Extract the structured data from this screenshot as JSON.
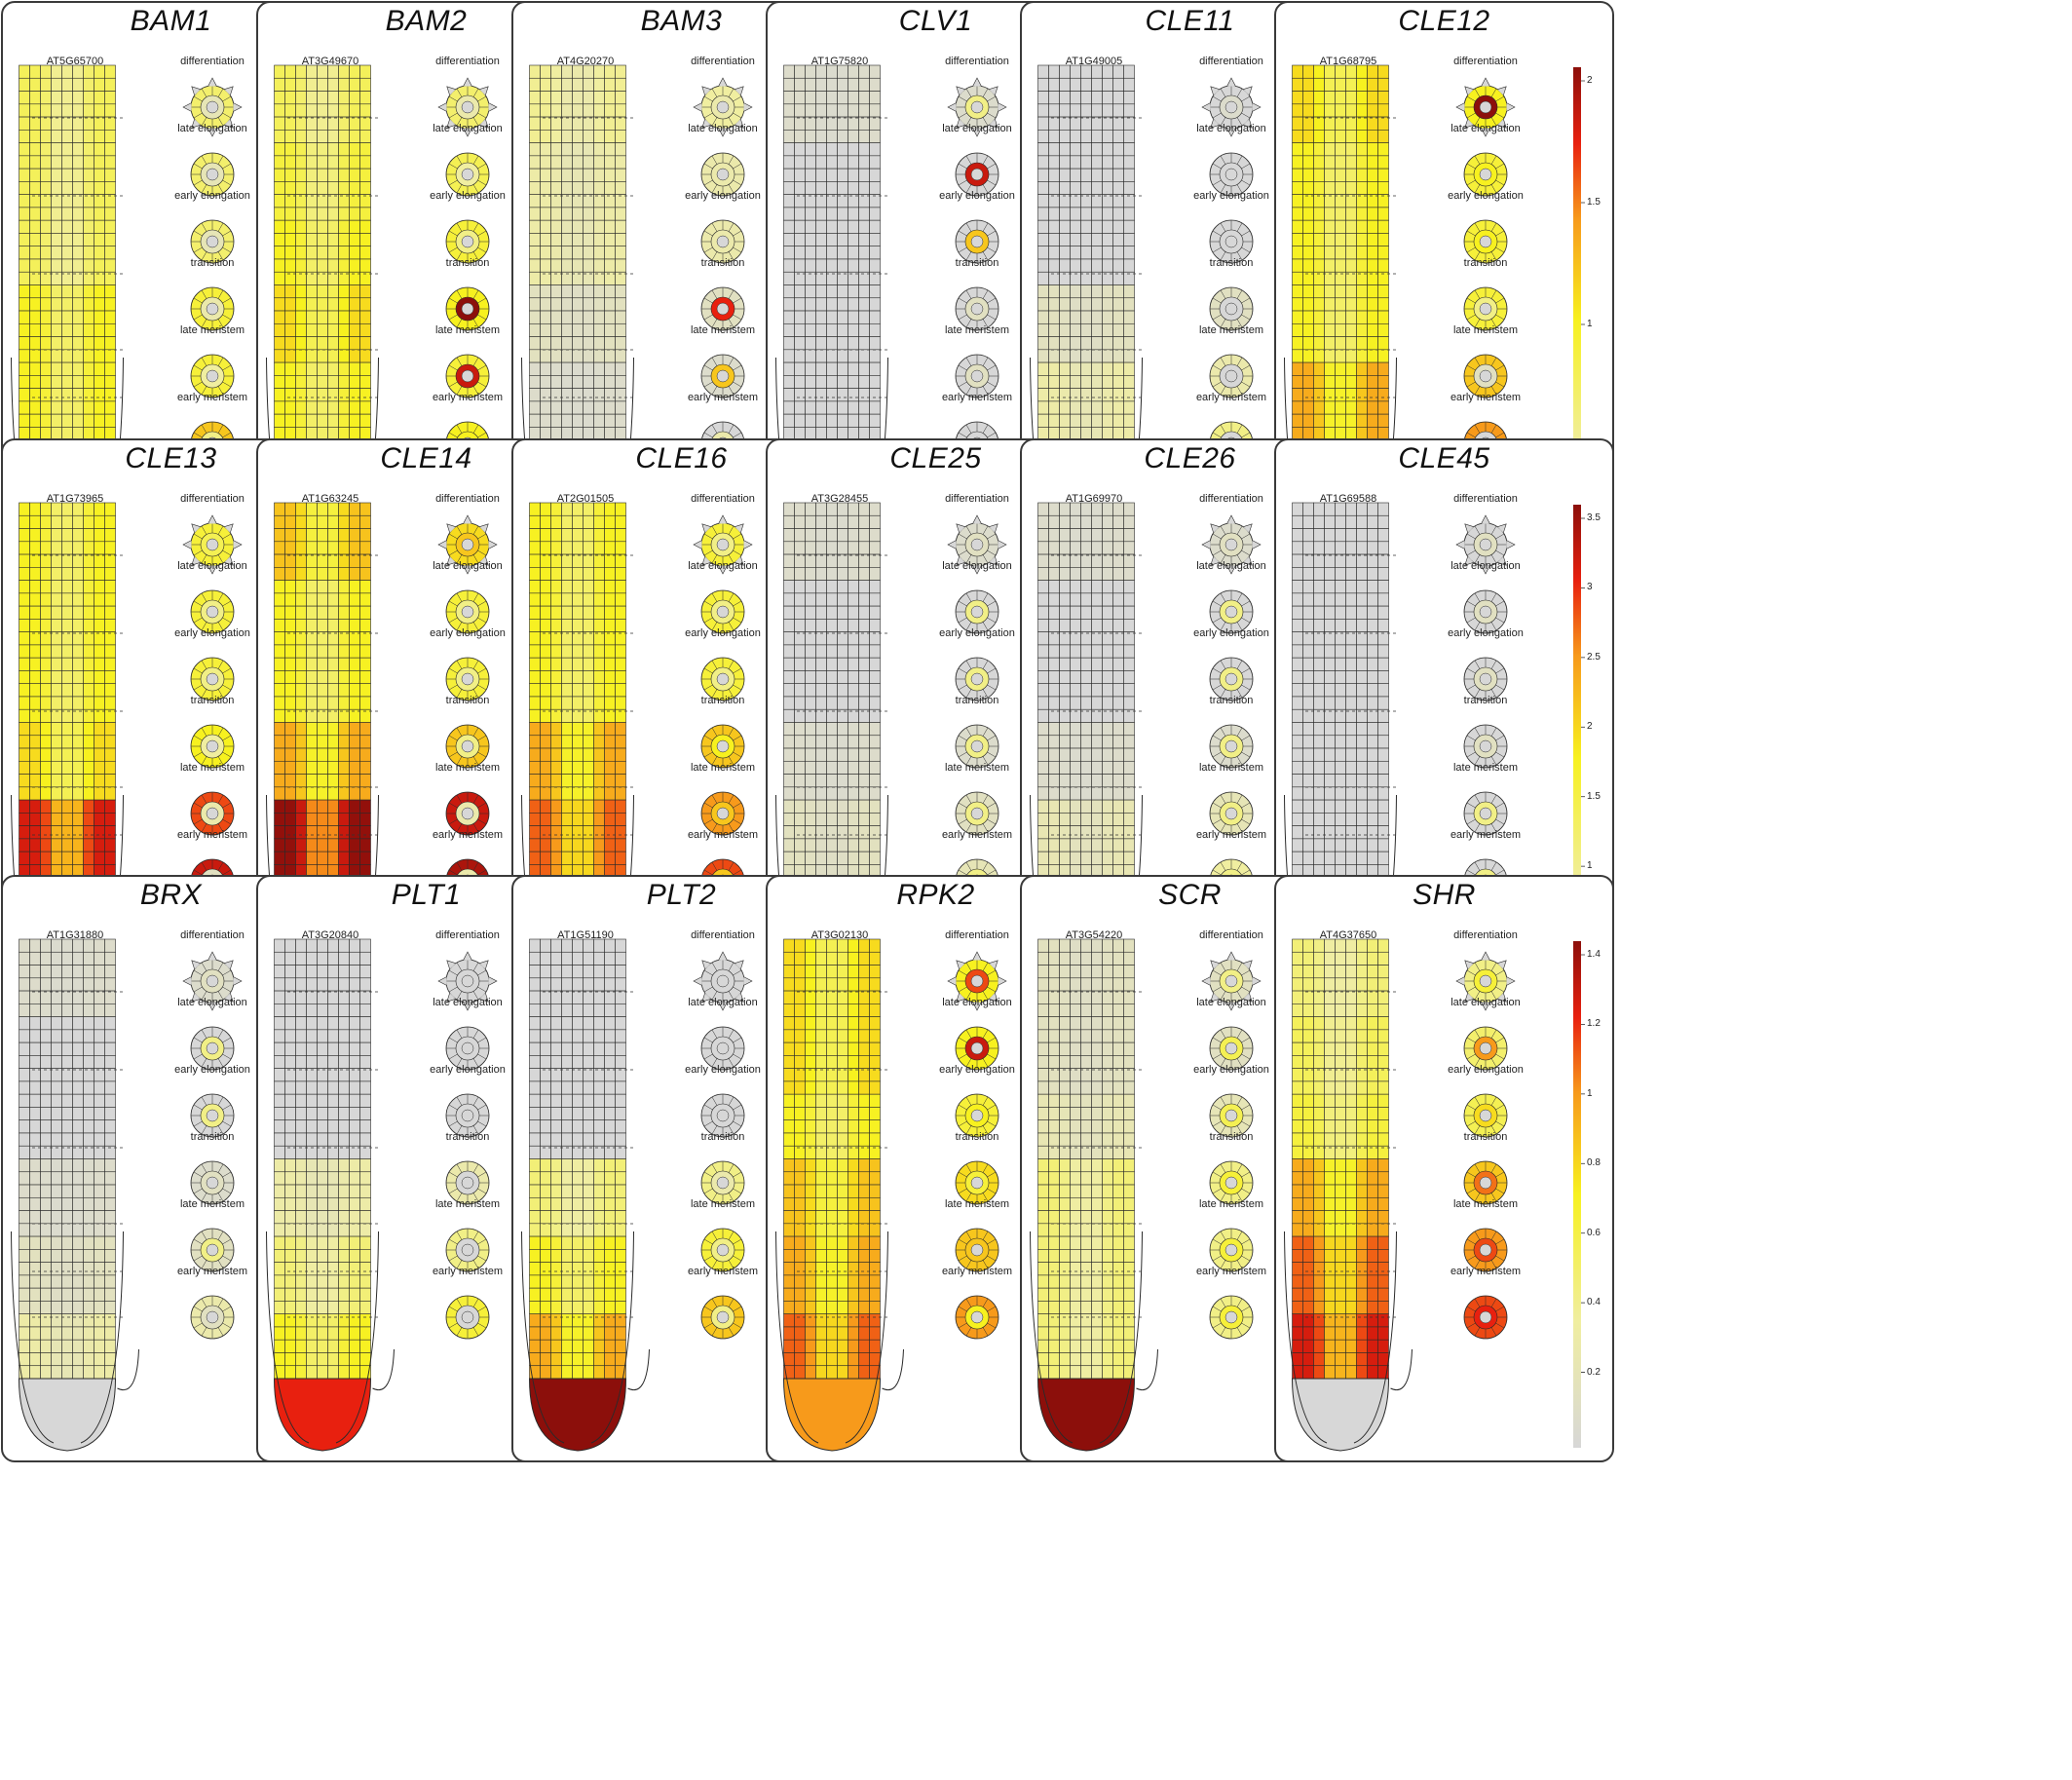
{
  "stages": [
    "differentiation",
    "late elongation",
    "early elongation",
    "transition",
    "late meristem",
    "early meristem"
  ],
  "colors": {
    "grey": "#d7d7d7",
    "lightYellow": "#f0eea0",
    "yellow": "#f7f11f",
    "orange": "#f79a1b",
    "red": "#e8200f",
    "darkRed": "#8c0f0b",
    "outline": "#2a2a2a"
  },
  "panels": [
    {
      "gene": "BAM1",
      "agi": "AT5G65700",
      "ticks": [
        "3",
        "2.5",
        "2",
        "1.5",
        "1",
        "0.5"
      ],
      "profile": [
        0.35,
        0.35,
        0.35,
        0.45,
        0.45,
        0.6
      ],
      "tip": "darkRed",
      "cs": [
        0.15,
        0.15,
        0.15,
        0.2,
        0.25,
        0.3
      ]
    },
    {
      "gene": "BAM2",
      "agi": "AT3G49670",
      "ticks": [
        "0.45",
        "0.4",
        "0.35",
        "0.3",
        "0.25",
        "0.2",
        "0.15",
        "0.1",
        "0.05"
      ],
      "profile": [
        0.35,
        0.4,
        0.45,
        0.5,
        0.45,
        0.5
      ],
      "tip": "yellow",
      "cs": [
        0.2,
        0.25,
        0.3,
        1.0,
        0.9,
        0.5
      ]
    },
    {
      "gene": "BAM3",
      "agi": "AT4G20270",
      "ticks": [
        "7",
        "6",
        "5",
        "4",
        "3",
        "2",
        "1"
      ],
      "profile": [
        0.25,
        0.2,
        0.2,
        0.1,
        0.05,
        0.0
      ],
      "tip": "grey",
      "cs": [
        0.2,
        0.2,
        0.2,
        0.85,
        0.6,
        0.2
      ]
    },
    {
      "gene": "CLV1",
      "agi": "AT1G75820",
      "ticks": [
        "3",
        "2.5",
        "2",
        "1.5",
        "1",
        "0.5"
      ],
      "profile": [
        0.05,
        0.0,
        0.0,
        0.0,
        0.0,
        0.0
      ],
      "tip": "grey",
      "cs": [
        0.3,
        0.9,
        0.6,
        0.1,
        0.1,
        0.0
      ]
    },
    {
      "gene": "CLE11",
      "agi": "AT1G49005",
      "ticks": [
        "1.6",
        "1.4",
        "1.2",
        "1",
        "0.8",
        "0.6",
        "0.4",
        "0.2"
      ],
      "profile": [
        0.0,
        0.0,
        0.0,
        0.1,
        0.2,
        0.3
      ],
      "tip": "darkRed",
      "cs": [
        0.05,
        0.0,
        0.0,
        0.0,
        0.0,
        0.0
      ]
    },
    {
      "gene": "CLE12",
      "agi": "AT1G68795",
      "ticks": [
        "2",
        "1.5",
        "1",
        "0.5"
      ],
      "profile": [
        0.5,
        0.45,
        0.45,
        0.45,
        0.6,
        0.7
      ],
      "tip": "grey",
      "cs": [
        1.0,
        0.5,
        0.5,
        0.3,
        0.1,
        0.0
      ]
    },
    {
      "gene": "CLE13",
      "agi": "AT1G73965",
      "ticks": [
        "2",
        "1.5",
        "1",
        "0.5"
      ],
      "profile": [
        0.45,
        0.45,
        0.45,
        0.5,
        0.8,
        0.9
      ],
      "tip": "darkRed",
      "cs": [
        0.4,
        0.3,
        0.3,
        0.25,
        0.2,
        0.1
      ]
    },
    {
      "gene": "CLE14",
      "agi": "AT1G63245",
      "ticks": [
        "1",
        "0.8",
        "0.6",
        "0.4",
        "0.2"
      ],
      "profile": [
        0.55,
        0.45,
        0.45,
        0.6,
        0.9,
        0.95
      ],
      "tip": "grey",
      "cs": [
        0.6,
        0.3,
        0.3,
        0.3,
        0.2,
        0.2
      ]
    },
    {
      "gene": "CLE16",
      "agi": "AT2G01505",
      "ticks": [
        "0.8",
        "0.6",
        "0.4",
        "0.2"
      ],
      "profile": [
        0.45,
        0.45,
        0.45,
        0.6,
        0.7,
        0.8
      ],
      "tip": "darkRed",
      "cs": [
        0.3,
        0.3,
        0.3,
        0.5,
        0.6,
        0.6
      ]
    },
    {
      "gene": "CLE25",
      "agi": "AT3G28455",
      "ticks": [
        "3.5",
        "3",
        "2.5",
        "2",
        "1.5",
        "1",
        "0.5"
      ],
      "profile": [
        0.05,
        0.0,
        0.0,
        0.05,
        0.1,
        0.15
      ],
      "tip": "grey",
      "cs": [
        0.1,
        0.3,
        0.3,
        0.3,
        0.3,
        0.3
      ]
    },
    {
      "gene": "CLE26",
      "agi": "AT1G69970",
      "ticks": [
        "1.2",
        "1",
        "0.8",
        "0.6",
        "0.4",
        "0.2"
      ],
      "profile": [
        0.05,
        0.0,
        0.0,
        0.05,
        0.15,
        0.25
      ],
      "tip": "grey",
      "cs": [
        0.1,
        0.3,
        0.3,
        0.3,
        0.3,
        0.3
      ]
    },
    {
      "gene": "CLE45",
      "agi": "AT1G69588",
      "ticks": [
        "3.5",
        "3",
        "2.5",
        "2",
        "1.5",
        "1",
        "0.5"
      ],
      "profile": [
        0.0,
        0.0,
        0.0,
        0.0,
        0.0,
        0.0
      ],
      "tip": "grey",
      "cs": [
        0.1,
        0.1,
        0.1,
        0.1,
        0.3,
        0.3
      ]
    },
    {
      "gene": "BRX",
      "agi": "AT1G31880",
      "ticks": [
        "2",
        "1.5",
        "1",
        "0.5"
      ],
      "profile": [
        0.05,
        0.0,
        0.0,
        0.05,
        0.1,
        0.2
      ],
      "tip": "grey",
      "cs": [
        0.1,
        0.3,
        0.3,
        0.1,
        0.3,
        0.1
      ]
    },
    {
      "gene": "PLT1",
      "agi": "AT3G20840",
      "ticks": [
        "8",
        "7",
        "6",
        "5",
        "4",
        "3",
        "2",
        "1"
      ],
      "profile": [
        0.0,
        0.0,
        0.0,
        0.2,
        0.3,
        0.45
      ],
      "tip": "red",
      "cs": [
        0.0,
        0.0,
        0.0,
        0.0,
        0.0,
        0.0
      ]
    },
    {
      "gene": "PLT2",
      "agi": "AT1G51190",
      "ticks": [
        "1.6",
        "1.4",
        "1.2",
        "1",
        "0.8",
        "0.6",
        "0.4",
        "0.2"
      ],
      "profile": [
        0.0,
        0.0,
        0.0,
        0.3,
        0.45,
        0.6
      ],
      "tip": "darkRed",
      "cs": [
        0.0,
        0.0,
        0.0,
        0.2,
        0.3,
        0.3
      ]
    },
    {
      "gene": "RPK2",
      "agi": "AT3G02130",
      "ticks": [
        "0.3",
        "0.25",
        "0.2",
        "0.15",
        "0.1",
        "0.05"
      ],
      "profile": [
        0.5,
        0.5,
        0.45,
        0.55,
        0.6,
        0.7
      ],
      "tip": "orange",
      "cs": [
        0.8,
        0.9,
        0.5,
        0.45,
        0.6,
        0.5
      ]
    },
    {
      "gene": "SCR",
      "agi": "AT3G54220",
      "ticks": [
        "3.5",
        "3",
        "2.5",
        "2",
        "1.5",
        "1",
        "0.5"
      ],
      "profile": [
        0.1,
        0.1,
        0.15,
        0.3,
        0.3,
        0.3
      ],
      "tip": "darkRed",
      "cs": [
        0.3,
        0.4,
        0.4,
        0.45,
        0.45,
        0.45
      ]
    },
    {
      "gene": "SHR",
      "agi": "AT4G37650",
      "ticks": [
        "1.4",
        "1.2",
        "1",
        "0.8",
        "0.6",
        "0.4",
        "0.2"
      ],
      "profile": [
        0.3,
        0.35,
        0.4,
        0.6,
        0.7,
        0.8
      ],
      "tip": "grey",
      "cs": [
        0.45,
        0.7,
        0.55,
        0.75,
        0.8,
        0.85
      ]
    }
  ]
}
